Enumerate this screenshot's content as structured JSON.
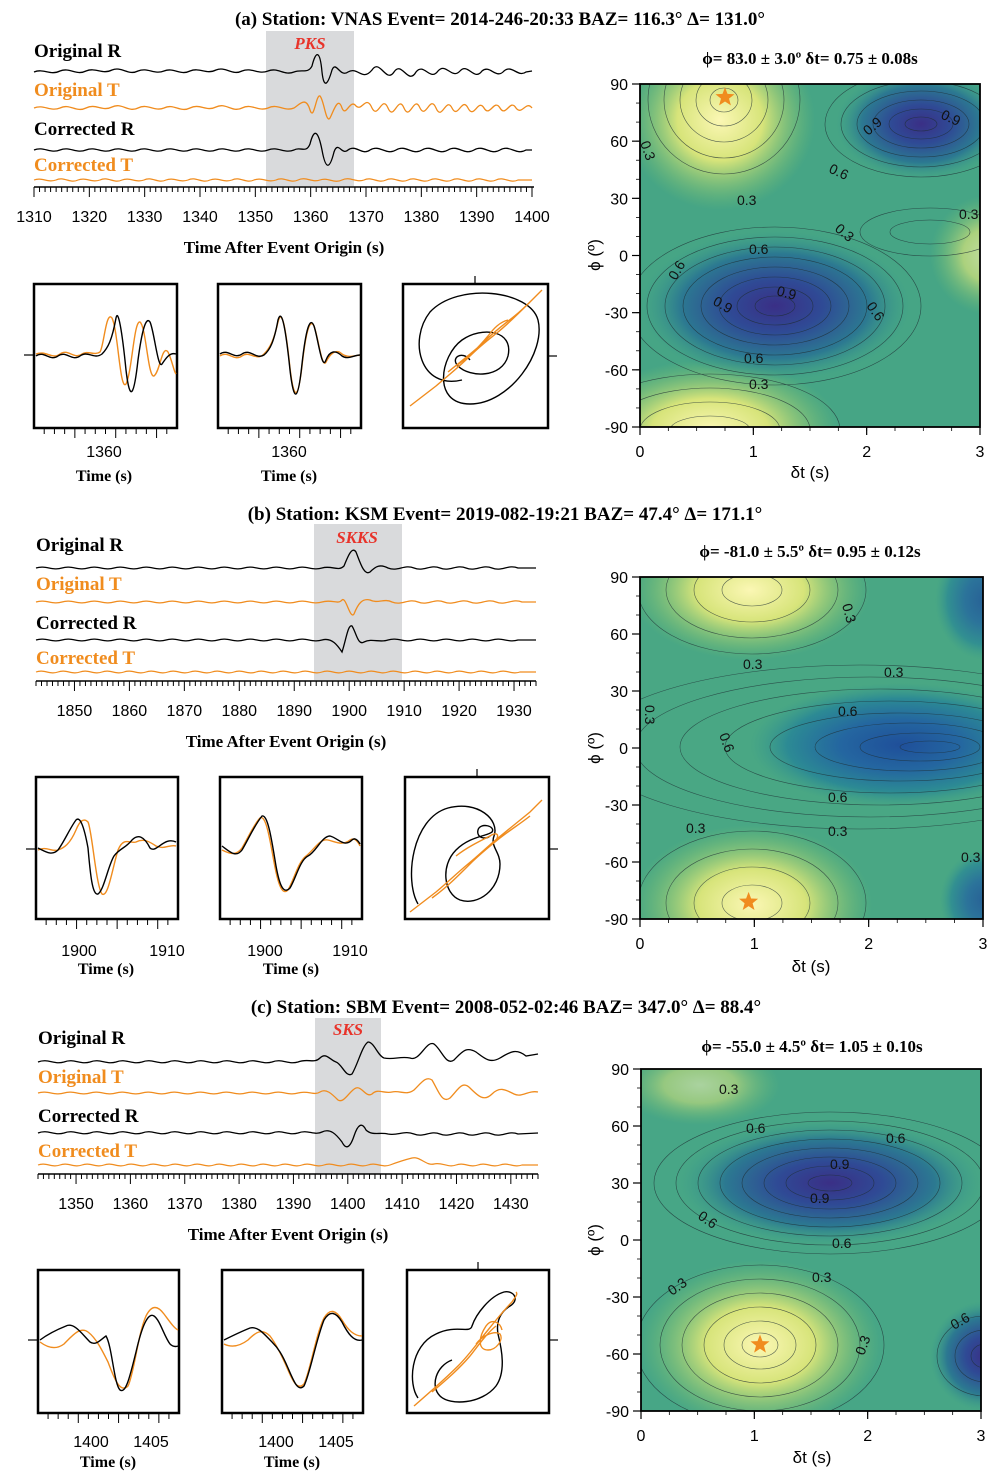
{
  "colors": {
    "radial": "#000000",
    "transverse": "#f08c1e",
    "phase_label": "#e8332a",
    "window": "#d9dadc",
    "star": "#f08c1e"
  },
  "panels": [
    {
      "title": "(a) Station: VNAS  Event= 2014-246-20:33  BAZ= 116.3°  Δ= 131.0°",
      "phase": "PKS",
      "trace_labels": [
        "Original R",
        "Original T",
        "Corrected R",
        "Corrected T"
      ],
      "x_ticks": [
        "1310",
        "1320",
        "1330",
        "1340",
        "1350",
        "1360",
        "1370",
        "1380",
        "1390",
        "1400"
      ],
      "x_range": [
        1310,
        1400
      ],
      "window": [
        1352,
        1368
      ],
      "arrival": 1362,
      "xlabel": "Time After Event Origin (s)",
      "small1_ticks": [
        "1360"
      ],
      "small2_ticks": [
        "1360"
      ],
      "small_xlabel": "Time (s)",
      "grid_title": "ϕ= 83.0 ± 3.0º δt= 0.75 ± 0.08s",
      "grid_ylabel": "ϕ (º)",
      "grid_xlabel": "δt (s)",
      "grid_yticks": [
        "90",
        "60",
        "30",
        "0",
        "-30",
        "-60",
        "-90"
      ],
      "grid_xticks": [
        "0",
        "1",
        "2",
        "3"
      ],
      "contour_labels": [
        "0.3",
        "0.9",
        "0.9",
        "0.6",
        "0.3",
        "0.3",
        "0.3",
        "0.6",
        "0.6",
        "0.9",
        "0.9",
        "0.6",
        "0.6",
        "0.3"
      ],
      "best_phi": 83.0,
      "best_dt": 0.75
    },
    {
      "title": "(b) Station: KSM  Event= 2019-082-19:21  BAZ= 47.4°  Δ= 171.1°",
      "phase": "SKKS",
      "trace_labels": [
        "Original R",
        "Original T",
        "Corrected R",
        "Corrected T"
      ],
      "x_ticks": [
        "1850",
        "1860",
        "1870",
        "1880",
        "1890",
        "1900",
        "1910",
        "1920",
        "1930"
      ],
      "x_range": [
        1843,
        1934
      ],
      "window": [
        1894,
        1910
      ],
      "arrival": 1901,
      "xlabel": "Time After Event Origin (s)",
      "small1_ticks": [
        "1900",
        "1910"
      ],
      "small2_ticks": [
        "1900",
        "1910"
      ],
      "small_xlabel": "Time (s)",
      "grid_title": "ϕ= -81.0 ± 5.5º δt= 0.95 ± 0.12s",
      "grid_ylabel": "ϕ (º)",
      "grid_xlabel": "δt (s)",
      "grid_yticks": [
        "90",
        "60",
        "30",
        "0",
        "-30",
        "-60",
        "-90"
      ],
      "grid_xticks": [
        "0",
        "1",
        "2",
        "3"
      ],
      "contour_labels": [
        "0.3",
        "0.3",
        "0.3",
        "0.3",
        "0.6",
        "0.6",
        "0.6",
        "0.3",
        "0.3",
        "0.3"
      ],
      "best_phi": -81.0,
      "best_dt": 0.95
    },
    {
      "title": "(c) Station: SBM  Event= 2008-052-02:46  BAZ= 347.0°  Δ= 88.4°",
      "phase": "SKS",
      "trace_labels": [
        "Original R",
        "Original T",
        "Corrected R",
        "Corrected T"
      ],
      "x_ticks": [
        "1350",
        "1360",
        "1370",
        "1380",
        "1390",
        "1400",
        "1410",
        "1420",
        "1430"
      ],
      "x_range": [
        1343,
        1435
      ],
      "window": [
        1395,
        1407
      ],
      "arrival": 1402,
      "xlabel": "Time After Event Origin (s)",
      "small1_ticks": [
        "1400",
        "1405"
      ],
      "small2_ticks": [
        "1400",
        "1405"
      ],
      "small_xlabel": "Time (s)",
      "grid_title": "ϕ= -55.0 ± 4.5º δt= 1.05 ± 0.10s",
      "grid_ylabel": "ϕ (º)",
      "grid_xlabel": "δt (s)",
      "grid_yticks": [
        "90",
        "60",
        "30",
        "0",
        "-30",
        "-60",
        "-90"
      ],
      "grid_xticks": [
        "0",
        "1",
        "2",
        "3"
      ],
      "contour_labels": [
        "0.3",
        "0.6",
        "0.6",
        "0.9",
        "0.9",
        "0.6",
        "0.6",
        "0.3",
        "0.3",
        "0.3",
        "0.6"
      ],
      "best_phi": -55.0,
      "best_dt": 1.05
    }
  ],
  "chart_data": [
    {
      "type": "line",
      "title": "(a) Station: VNAS  Event= 2014-246-20:33  BAZ= 116.3°  Δ= 131.0°",
      "xlabel": "Time After Event Origin (s)",
      "series": [
        {
          "name": "Original R"
        },
        {
          "name": "Original T"
        },
        {
          "name": "Corrected R"
        },
        {
          "name": "Corrected T"
        }
      ],
      "xlim": [
        1310,
        1400
      ],
      "phase_window": [
        1352,
        1368
      ],
      "phase": "PKS"
    },
    {
      "type": "heatmap",
      "title": "ϕ= 83.0 ± 3.0º δt= 0.75 ± 0.08s",
      "xlabel": "δt (s)",
      "ylabel": "ϕ (º)",
      "xlim": [
        0,
        3
      ],
      "ylim": [
        -90,
        90
      ],
      "minima": [
        {
          "dt": 1.15,
          "phi": -27
        },
        {
          "dt": 2.45,
          "phi": 67
        }
      ],
      "best": {
        "dt": 0.75,
        "phi": 83.0
      }
    },
    {
      "type": "line",
      "title": "(b) Station: KSM  Event= 2019-082-19:21  BAZ= 47.4°  Δ= 171.1°",
      "xlabel": "Time After Event Origin (s)",
      "series": [
        {
          "name": "Original R"
        },
        {
          "name": "Original T"
        },
        {
          "name": "Corrected R"
        },
        {
          "name": "Corrected T"
        }
      ],
      "xlim": [
        1843,
        1934
      ],
      "phase_window": [
        1894,
        1910
      ],
      "phase": "SKKS"
    },
    {
      "type": "heatmap",
      "title": "ϕ= -81.0 ± 5.5º δt= 0.95 ± 0.12s",
      "xlabel": "δt (s)",
      "ylabel": "ϕ (º)",
      "xlim": [
        0,
        3
      ],
      "ylim": [
        -90,
        90
      ],
      "minima": [
        {
          "dt": 2.6,
          "phi": -2
        }
      ],
      "best": {
        "dt": 0.95,
        "phi": -81.0
      }
    },
    {
      "type": "line",
      "title": "(c) Station: SBM  Event= 2008-052-02:46  BAZ= 347.0°  Δ= 88.4°",
      "xlabel": "Time After Event Origin (s)",
      "series": [
        {
          "name": "Original R"
        },
        {
          "name": "Original T"
        },
        {
          "name": "Corrected R"
        },
        {
          "name": "Corrected T"
        }
      ],
      "xlim": [
        1343,
        1435
      ],
      "phase_window": [
        1395,
        1407
      ],
      "phase": "SKS"
    },
    {
      "type": "heatmap",
      "title": "ϕ= -55.0 ± 4.5º δt= 1.05 ± 0.10s",
      "xlabel": "δt (s)",
      "ylabel": "ϕ (º)",
      "xlim": [
        0,
        3
      ],
      "ylim": [
        -90,
        90
      ],
      "minima": [
        {
          "dt": 1.65,
          "phi": 30
        },
        {
          "dt": 3.0,
          "phi": -62
        }
      ],
      "best": {
        "dt": 1.05,
        "phi": -55.0
      }
    }
  ]
}
